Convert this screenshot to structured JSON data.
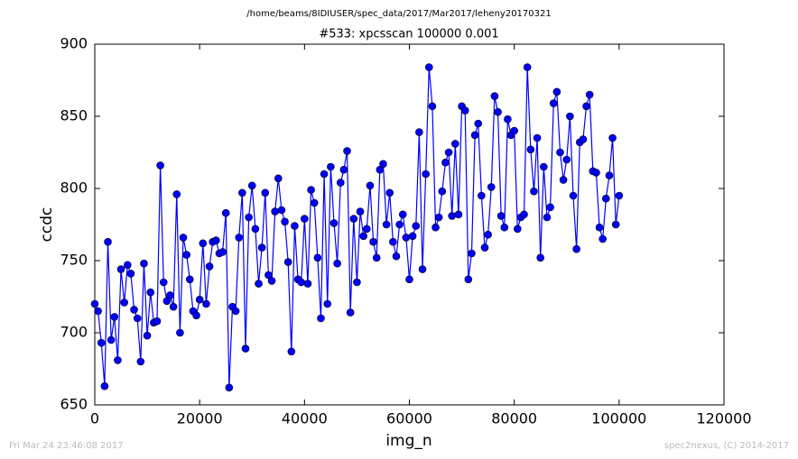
{
  "chart_data": {
    "type": "line",
    "title": "/home/beams/8IDIUSER/spec_data/2017/Mar2017/leheny20170321",
    "subtitle": "#533: xpcsscan 100000 0.001",
    "x_label": "img_n",
    "y_label": "ccdc",
    "color": "#0000ff",
    "x": [
      0,
      625,
      1250,
      1875,
      2500,
      3125,
      3750,
      4375,
      5000,
      5625,
      6250,
      6875,
      7500,
      8125,
      8750,
      9375,
      10000,
      10625,
      11250,
      11875,
      12500,
      13125,
      13750,
      14375,
      15000,
      15625,
      16250,
      16875,
      17500,
      18125,
      18750,
      19375,
      20000,
      20625,
      21250,
      21875,
      22500,
      23125,
      23750,
      24375,
      25000,
      25625,
      26250,
      26875,
      27500,
      28125,
      28750,
      29375,
      30000,
      30625,
      31250,
      31875,
      32500,
      33125,
      33750,
      34375,
      35000,
      35625,
      36250,
      36875,
      37500,
      38125,
      38750,
      39375,
      40000,
      40625,
      41250,
      41875,
      42500,
      43125,
      43750,
      44375,
      45000,
      45625,
      46250,
      46875,
      47500,
      48125,
      48750,
      49375,
      50000,
      50625,
      51250,
      51875,
      52500,
      53125,
      53750,
      54375,
      55000,
      55625,
      56250,
      56875,
      57500,
      58125,
      58750,
      59375,
      60000,
      60625,
      61250,
      61875,
      62500,
      63125,
      63750,
      64375,
      65000,
      65625,
      66250,
      66875,
      67500,
      68125,
      68750,
      69375,
      70000,
      70625,
      71250,
      71875,
      72500,
      73125,
      73750,
      74375,
      75000,
      75625,
      76250,
      76875,
      77500,
      78125,
      78750,
      79375,
      80000,
      80625,
      81250,
      81875,
      82500,
      83125,
      83750,
      84375,
      85000,
      85625,
      86250,
      86875,
      87500,
      88125,
      88750,
      89375,
      90000,
      90625,
      91250,
      91875,
      92500,
      93125,
      93750,
      94375,
      95000,
      95625,
      96250,
      96875,
      97500,
      98125,
      98750,
      99375,
      100000
    ],
    "values": [
      720,
      715,
      693,
      663,
      763,
      695,
      711,
      681,
      744,
      721,
      747,
      741,
      716,
      710,
      680,
      748,
      698,
      728,
      707,
      708,
      816,
      735,
      722,
      726,
      718,
      796,
      700,
      766,
      754,
      737,
      715,
      712,
      723,
      762,
      720,
      746,
      763,
      764,
      755,
      756,
      783,
      662,
      718,
      715,
      766,
      797,
      689,
      780,
      802,
      772,
      734,
      759,
      797,
      740,
      736,
      784,
      807,
      785,
      777,
      749,
      687,
      774,
      737,
      735,
      779,
      734,
      799,
      790,
      752,
      710,
      810,
      720,
      815,
      776,
      748,
      804,
      813,
      826,
      714,
      779,
      735,
      784,
      767,
      772,
      802,
      763,
      752,
      813,
      817,
      775,
      797,
      763,
      753,
      775,
      782,
      766,
      737,
      767,
      774,
      839,
      744,
      810,
      884,
      857,
      773,
      780,
      798,
      818,
      825,
      781,
      831,
      782,
      857,
      854,
      737,
      755,
      837,
      845,
      795,
      759,
      768,
      801,
      864,
      853,
      781,
      773,
      848,
      837,
      840,
      772,
      780,
      782,
      884,
      827,
      798,
      835,
      752,
      815,
      780,
      787,
      859,
      867,
      825,
      806,
      820,
      850,
      795,
      758,
      832,
      834,
      857,
      865,
      812,
      811,
      773,
      765,
      793,
      809,
      835,
      775,
      795
    ],
    "xlim": [
      0,
      120000
    ],
    "xticks": [
      0,
      20000,
      40000,
      60000,
      80000,
      100000,
      120000
    ],
    "ylim": [
      650,
      900
    ],
    "yticks": [
      650,
      700,
      750,
      800,
      850,
      900
    ]
  },
  "footer": {
    "left": "Fri Mar 24 23:46:08 2017",
    "right": "spec2nexus, (C) 2014-2017"
  }
}
